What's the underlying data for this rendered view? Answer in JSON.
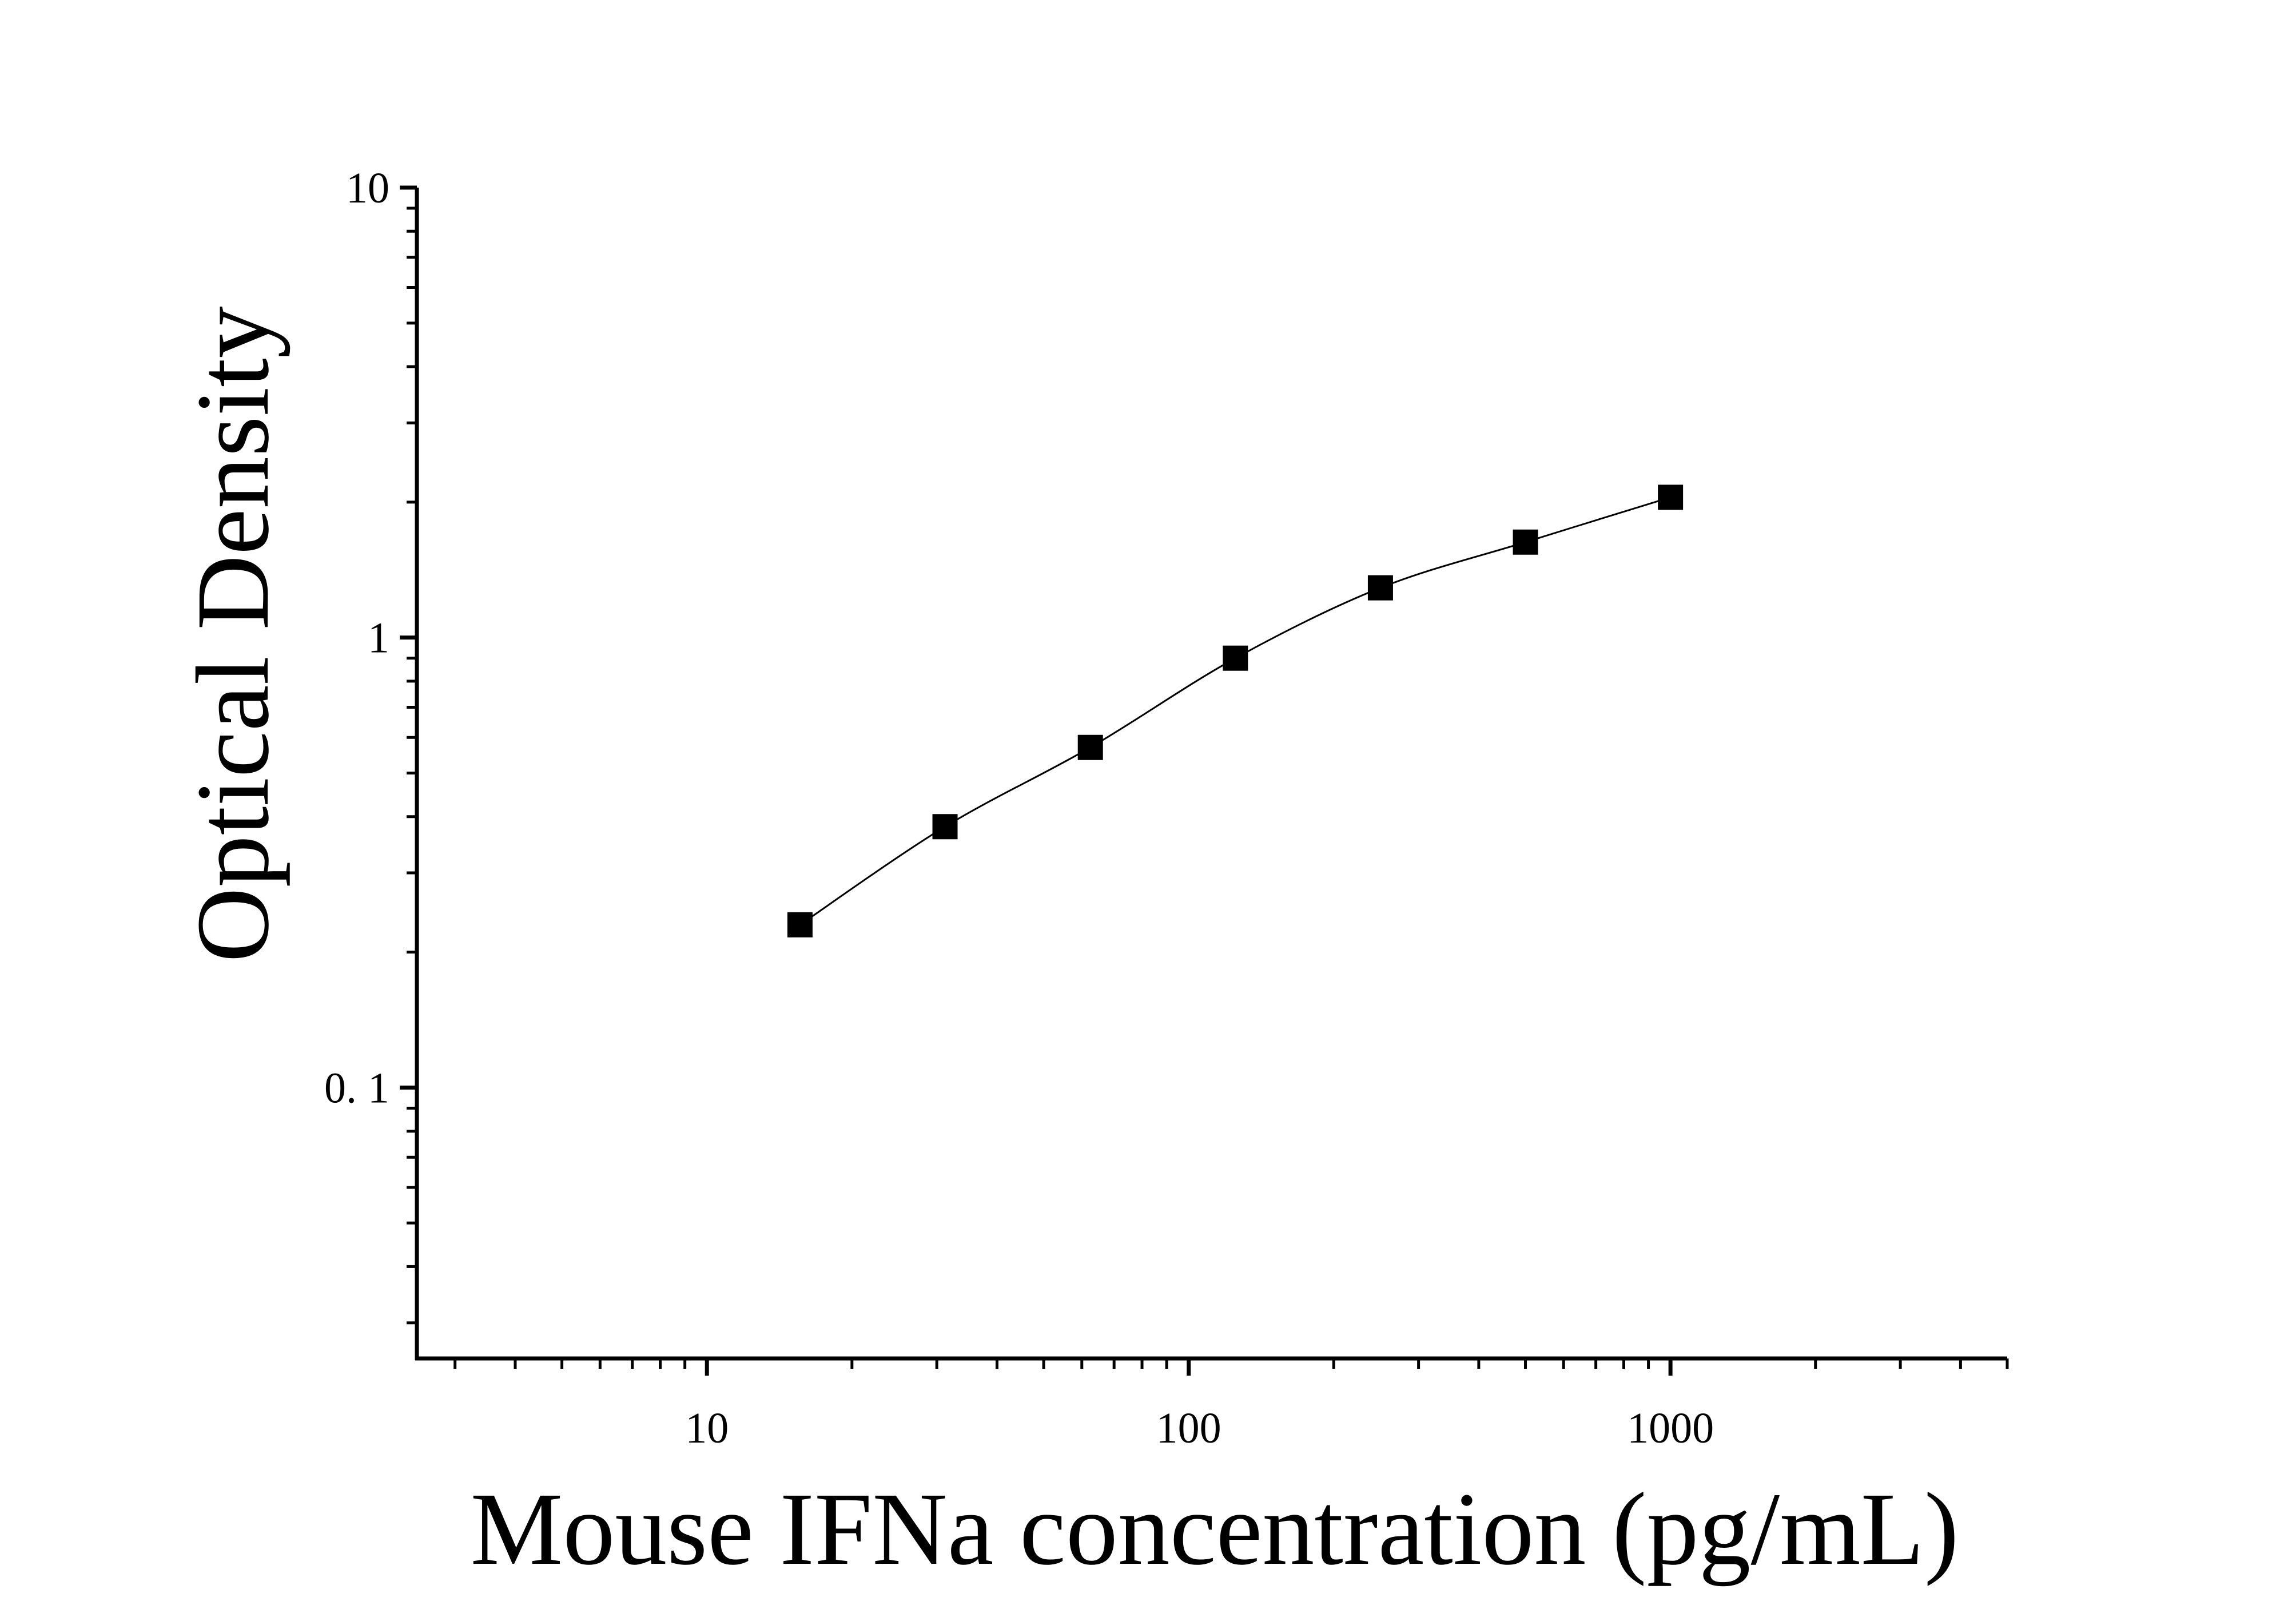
{
  "chart_data": {
    "type": "scatter",
    "xlabel": "Mouse IFNa concentration (pg/mL)",
    "ylabel": "Optical Density",
    "xscale": "log",
    "yscale": "log",
    "xlim": [
      2.5,
      5000
    ],
    "ylim": [
      0.025,
      10
    ],
    "x_ticks": [
      {
        "value": 10,
        "label": "10"
      },
      {
        "value": 100,
        "label": "100"
      },
      {
        "value": 1000,
        "label": "1000"
      }
    ],
    "y_ticks": [
      {
        "value": 10,
        "label": "10"
      },
      {
        "value": 1,
        "label": "1"
      },
      {
        "value": 0.1,
        "label": "0. 1"
      }
    ],
    "series": [
      {
        "marker": "square",
        "color": "#000000",
        "x": [
          15.6,
          31.2,
          62.5,
          125,
          250,
          500,
          1000
        ],
        "y": [
          0.23,
          0.38,
          0.57,
          0.9,
          1.29,
          1.63,
          2.05
        ]
      }
    ],
    "fit_curve": true,
    "grid": false
  }
}
